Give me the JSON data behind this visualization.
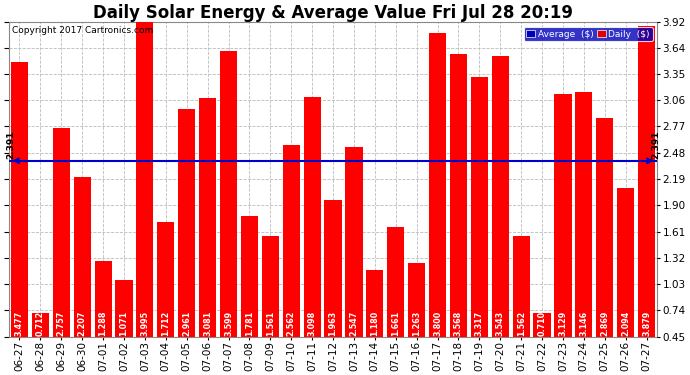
{
  "title": "Daily Solar Energy & Average Value Fri Jul 28 20:19",
  "copyright": "Copyright 2017 Cartronics.com",
  "categories": [
    "06-27",
    "06-28",
    "06-29",
    "06-30",
    "07-01",
    "07-02",
    "07-03",
    "07-04",
    "07-05",
    "07-06",
    "07-07",
    "07-08",
    "07-09",
    "07-10",
    "07-11",
    "07-12",
    "07-13",
    "07-14",
    "07-15",
    "07-16",
    "07-17",
    "07-18",
    "07-19",
    "07-20",
    "07-21",
    "07-22",
    "07-23",
    "07-24",
    "07-25",
    "07-26",
    "07-27"
  ],
  "values": [
    3.477,
    0.712,
    2.757,
    2.207,
    1.288,
    1.071,
    3.995,
    1.712,
    2.961,
    3.081,
    3.599,
    1.781,
    1.561,
    2.562,
    3.098,
    1.963,
    2.547,
    1.18,
    1.661,
    1.263,
    3.8,
    3.568,
    3.317,
    3.543,
    1.562,
    0.71,
    3.129,
    3.146,
    2.869,
    2.094,
    3.879
  ],
  "average": 2.391,
  "bar_color": "#ff0000",
  "avg_line_color": "#0000cc",
  "ylim": [
    0.45,
    3.92
  ],
  "yticks": [
    0.45,
    0.74,
    1.03,
    1.32,
    1.61,
    1.9,
    2.19,
    2.48,
    2.77,
    3.06,
    3.35,
    3.64,
    3.92
  ],
  "background_color": "#ffffff",
  "grid_color": "#bbbbbb",
  "title_fontsize": 12,
  "bar_label_fontsize": 5.8,
  "tick_fontsize": 7.5,
  "legend_avg_color": "#0000bb",
  "legend_daily_color": "#dd0000"
}
